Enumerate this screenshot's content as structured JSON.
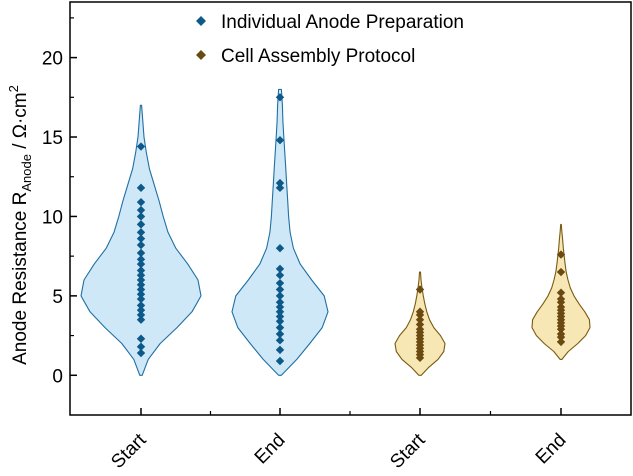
{
  "chart_data": {
    "type": "violin",
    "ylabel_main": "Anode Resistance R",
    "ylabel_sub": "Anode",
    "ylabel_unit": " / Ω·cm",
    "ylabel_sup": "2",
    "ylim": [
      -2.5,
      23.5
    ],
    "yticks": [
      0,
      5,
      10,
      15,
      20
    ],
    "ytick_labels": [
      "0",
      "5",
      "10",
      "15",
      "20"
    ],
    "grid": false,
    "legend_position": "top",
    "categories": [
      "Start",
      "End",
      "Start",
      "End"
    ],
    "series": [
      {
        "name": "Individual Anode Preparation",
        "fill_color": "#cfe8f7",
        "edge_color": "#1f6fa3",
        "marker_color": "#0d5a8a",
        "groups": [
          {
            "category_index": 0,
            "kde_y": [
              0,
              1,
              2,
              3,
              4,
              5,
              6,
              7,
              8,
              9,
              10,
              11,
              12,
              13,
              14,
              15,
              16,
              17
            ],
            "kde_w": [
              0.02,
              0.12,
              0.32,
              0.6,
              0.85,
              1.0,
              0.95,
              0.78,
              0.58,
              0.45,
              0.37,
              0.3,
              0.22,
              0.14,
              0.09,
              0.05,
              0.03,
              0.01
            ],
            "points": [
              1.4,
              1.8,
              2.3,
              3.5,
              3.8,
              4.1,
              4.4,
              4.8,
              5.1,
              5.4,
              5.7,
              6.0,
              6.3,
              6.6,
              7.0,
              7.3,
              7.7,
              8.2,
              8.6,
              9.0,
              9.5,
              10.0,
              10.4,
              10.9,
              11.8,
              14.4
            ]
          },
          {
            "category_index": 1,
            "kde_y": [
              0,
              1,
              2,
              3,
              4,
              5,
              6,
              7,
              8,
              9,
              10,
              11,
              12,
              13,
              14,
              15,
              16,
              17,
              18
            ],
            "kde_w": [
              0.03,
              0.35,
              0.62,
              0.88,
              1.0,
              0.92,
              0.66,
              0.42,
              0.28,
              0.21,
              0.18,
              0.16,
              0.14,
              0.12,
              0.1,
              0.08,
              0.06,
              0.05,
              0.03
            ],
            "points": [
              0.9,
              1.6,
              2.2,
              2.6,
              3.0,
              3.4,
              3.7,
              4.0,
              4.3,
              4.6,
              5.0,
              5.4,
              5.8,
              6.3,
              6.7,
              8.0,
              11.8,
              12.1,
              14.8,
              17.5
            ]
          }
        ]
      },
      {
        "name": "Cell Assembly Protocol",
        "fill_color": "#f7e7b5",
        "edge_color": "#7a5a10",
        "marker_color": "#6b4a12",
        "groups": [
          {
            "category_index": 2,
            "kde_y": [
              0.0,
              0.5,
              1.0,
              1.5,
              2.0,
              2.5,
              3.0,
              3.5,
              4.0,
              4.5,
              5.0,
              5.5,
              6.0,
              6.5
            ],
            "kde_w": [
              0.05,
              0.35,
              0.72,
              0.95,
              1.0,
              0.82,
              0.55,
              0.38,
              0.27,
              0.19,
              0.13,
              0.08,
              0.04,
              0.02
            ],
            "points": [
              1.1,
              1.3,
              1.5,
              1.7,
              1.9,
              2.1,
              2.3,
              2.5,
              2.7,
              2.9,
              3.2,
              3.5,
              3.8,
              4.0,
              5.4
            ]
          },
          {
            "category_index": 3,
            "kde_y": [
              1.0,
              1.5,
              2.0,
              2.5,
              3.0,
              3.5,
              4.0,
              4.5,
              5.0,
              5.5,
              6.0,
              6.5,
              7.0,
              7.5,
              8.0,
              8.5,
              9.0,
              9.5
            ],
            "kde_w": [
              0.03,
              0.25,
              0.58,
              0.85,
              1.0,
              0.98,
              0.82,
              0.62,
              0.45,
              0.32,
              0.24,
              0.18,
              0.14,
              0.11,
              0.08,
              0.06,
              0.03,
              0.01
            ],
            "points": [
              2.1,
              2.4,
              2.6,
              2.9,
              3.1,
              3.3,
              3.5,
              3.7,
              3.9,
              4.1,
              4.3,
              4.6,
              4.8,
              5.2,
              6.5,
              7.6
            ]
          }
        ]
      }
    ]
  }
}
